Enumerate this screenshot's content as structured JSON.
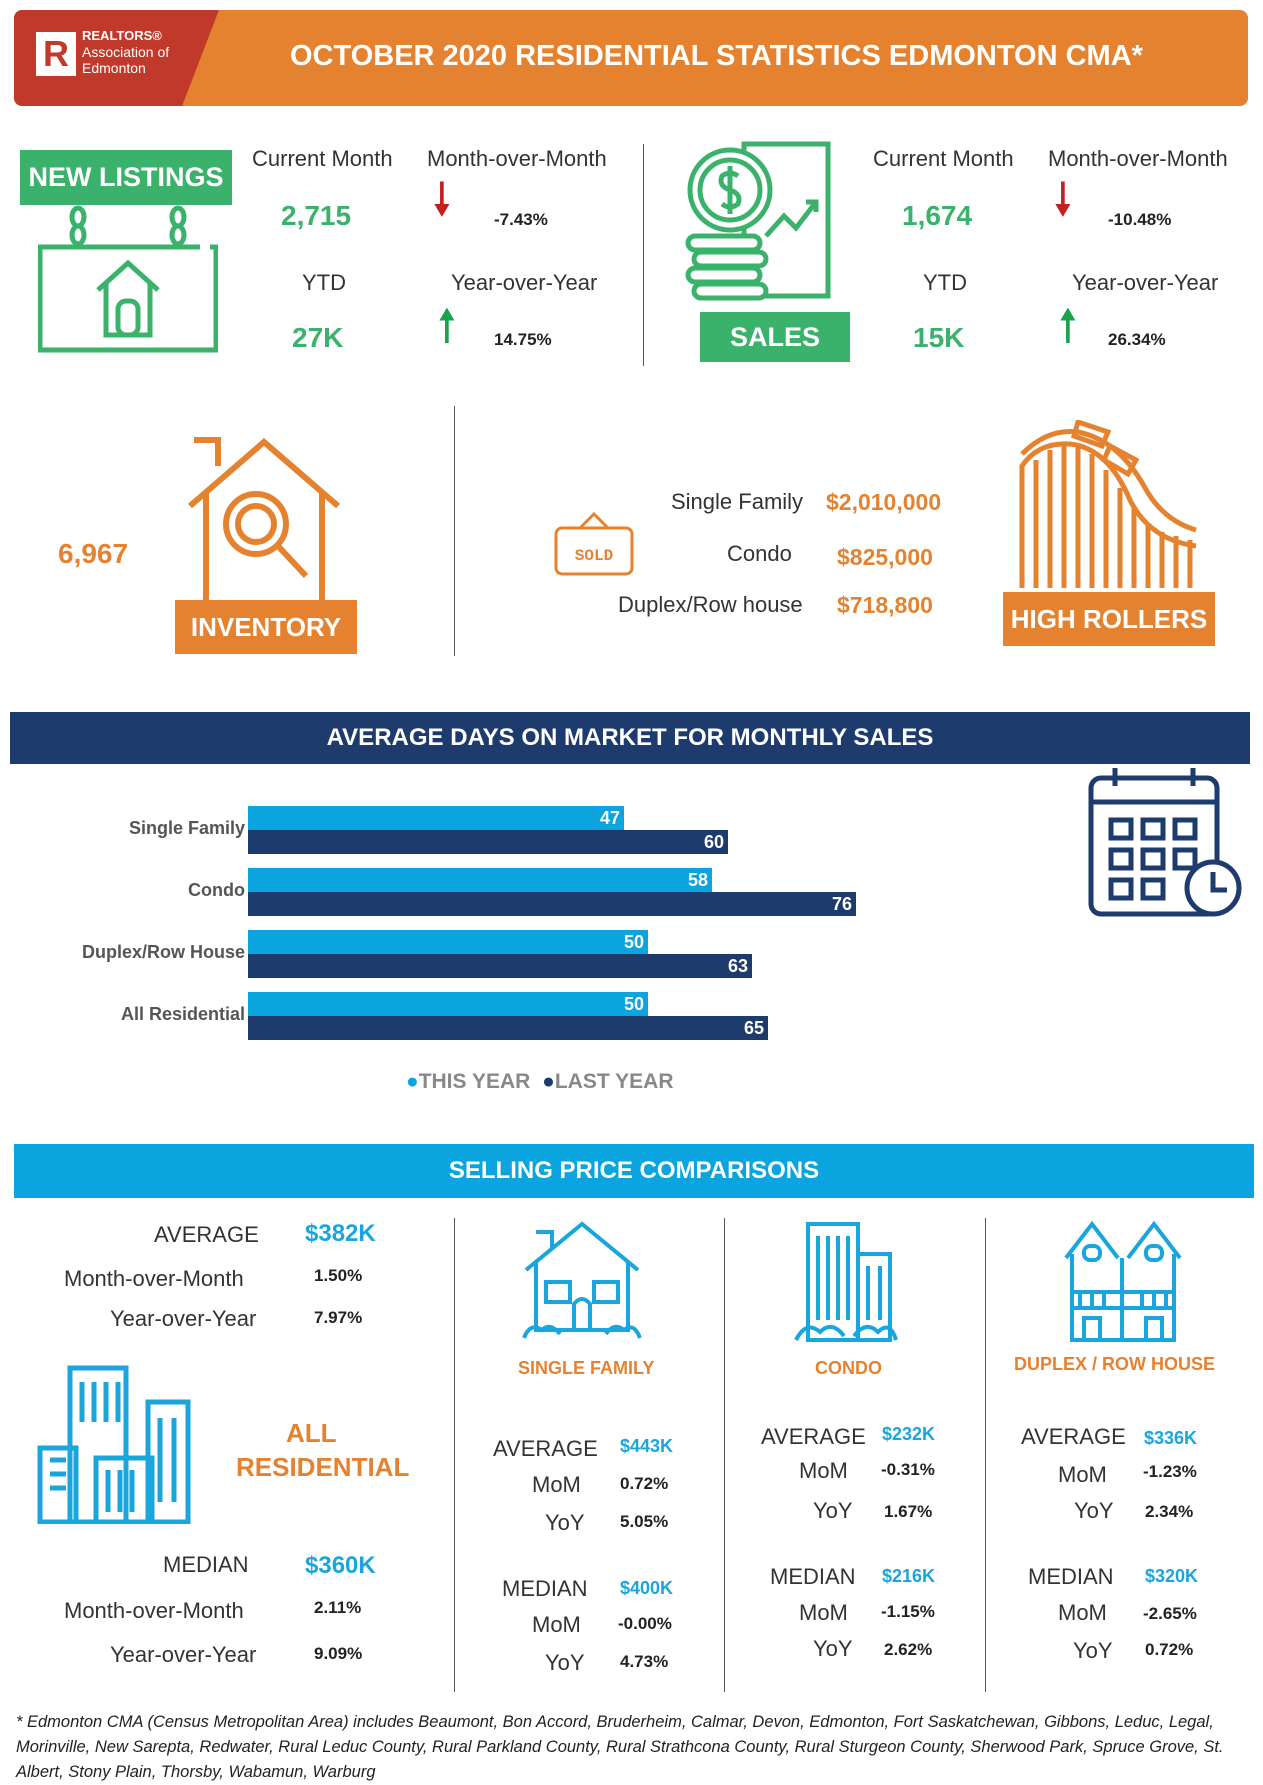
{
  "header": {
    "logo_line1": "REALTORS®",
    "logo_line2": "Association of",
    "logo_line3": "Edmonton",
    "logo_letter": "R",
    "title": "OCTOBER 2020 RESIDENTIAL STATISTICS EDMONTON CMA*"
  },
  "new_listings": {
    "badge": "NEW  LISTINGS",
    "current_month_label": "Current Month",
    "current_month_value": "2,715",
    "mom_label": "Month-over-Month",
    "mom_value": "-7.43%",
    "ytd_label": "YTD",
    "ytd_value": "27K",
    "yoy_label": "Year-over-Year",
    "yoy_value": "14.75%"
  },
  "sales": {
    "badge": "SALES",
    "current_month_label": "Current Month",
    "current_month_value": "1,674",
    "mom_label": "Month-over-Month",
    "mom_value": "-10.48%",
    "ytd_label": "YTD",
    "ytd_value": "15K",
    "yoy_label": "Year-over-Year",
    "yoy_value": "26.34%"
  },
  "inventory": {
    "value": "6,967",
    "badge": "INVENTORY"
  },
  "high_rollers": {
    "sold_sign": "SOLD",
    "badge": "HIGH ROLLERS",
    "rows": [
      {
        "label": "Single Family",
        "value": "$2,010,000"
      },
      {
        "label": "Condo",
        "value": "$825,000"
      },
      {
        "label": "Duplex/Row house",
        "value": "$718,800"
      }
    ]
  },
  "days_on_market": {
    "title": "AVERAGE DAYS ON MARKET FOR MONTHLY SALES",
    "legend_this_year": "THIS YEAR",
    "legend_last_year": "LAST YEAR",
    "colors": {
      "this_year": "#0aa5df",
      "last_year": "#1d3b6c"
    }
  },
  "chart_data": {
    "type": "bar",
    "orientation": "horizontal",
    "categories": [
      "Single Family",
      "Condo",
      "Duplex/Row House",
      "All Residential"
    ],
    "series": [
      {
        "name": "THIS YEAR",
        "values": [
          47,
          58,
          50,
          50
        ]
      },
      {
        "name": "LAST YEAR",
        "values": [
          60,
          76,
          63,
          65
        ]
      }
    ],
    "legend_placement": "bottom",
    "grid": false
  },
  "selling_price": {
    "title": "SELLING PRICE COMPARISONS",
    "all_residential": {
      "title_line1": "ALL",
      "title_line2": "RESIDENTIAL",
      "average_label": "AVERAGE",
      "average_value": "$382K",
      "avg_mom_label": "Month-over-Month",
      "avg_mom_value": "1.50%",
      "avg_yoy_label": "Year-over-Year",
      "avg_yoy_value": "7.97%",
      "median_label": "MEDIAN",
      "median_value": "$360K",
      "med_mom_label": "Month-over-Month",
      "med_mom_value": "2.11%",
      "med_yoy_label": "Year-over-Year",
      "med_yoy_value": "9.09%"
    },
    "single_family": {
      "title": "SINGLE FAMILY",
      "average_label": "AVERAGE",
      "average_value": "$443K",
      "avg_mom_label": "MoM",
      "avg_mom_value": "0.72%",
      "avg_yoy_label": "YoY",
      "avg_yoy_value": "5.05%",
      "median_label": "MEDIAN",
      "median_value": "$400K",
      "med_mom_label": "MoM",
      "med_mom_value": "-0.00%",
      "med_yoy_label": "YoY",
      "med_yoy_value": "4.73%"
    },
    "condo": {
      "title": "CONDO",
      "average_label": "AVERAGE",
      "average_value": "$232K",
      "avg_mom_label": "MoM",
      "avg_mom_value": "-0.31%",
      "avg_yoy_label": "YoY",
      "avg_yoy_value": "1.67%",
      "median_label": "MEDIAN",
      "median_value": "$216K",
      "med_mom_label": "MoM",
      "med_mom_value": "-1.15%",
      "med_yoy_label": "YoY",
      "med_yoy_value": "2.62%"
    },
    "duplex": {
      "title": "DUPLEX / ROW HOUSE",
      "average_label": "AVERAGE",
      "average_value": "$336K",
      "avg_mom_label": "MoM",
      "avg_mom_value": "-1.23%",
      "avg_yoy_label": "YoY",
      "avg_yoy_value": "2.34%",
      "median_label": "MEDIAN",
      "median_value": "$320K",
      "med_mom_label": "MoM",
      "med_mom_value": "-2.65%",
      "med_yoy_label": "YoY",
      "med_yoy_value": "0.72%"
    }
  },
  "footnote": "* Edmonton CMA (Census Metropolitan Area) includes Beaumont, Bon Accord, Bruderheim, Calmar, Devon, Edmonton, Fort Saskatchewan, Gibbons, Leduc, Legal, Morinville, New Sarepta, Redwater, Rural Leduc County, Rural Parkland County, Rural Strathcona County, Rural Sturgeon County, Sherwood Park, Spruce Grove, St. Albert, Stony Plain, Thorsby, Wabamun, Warburg"
}
